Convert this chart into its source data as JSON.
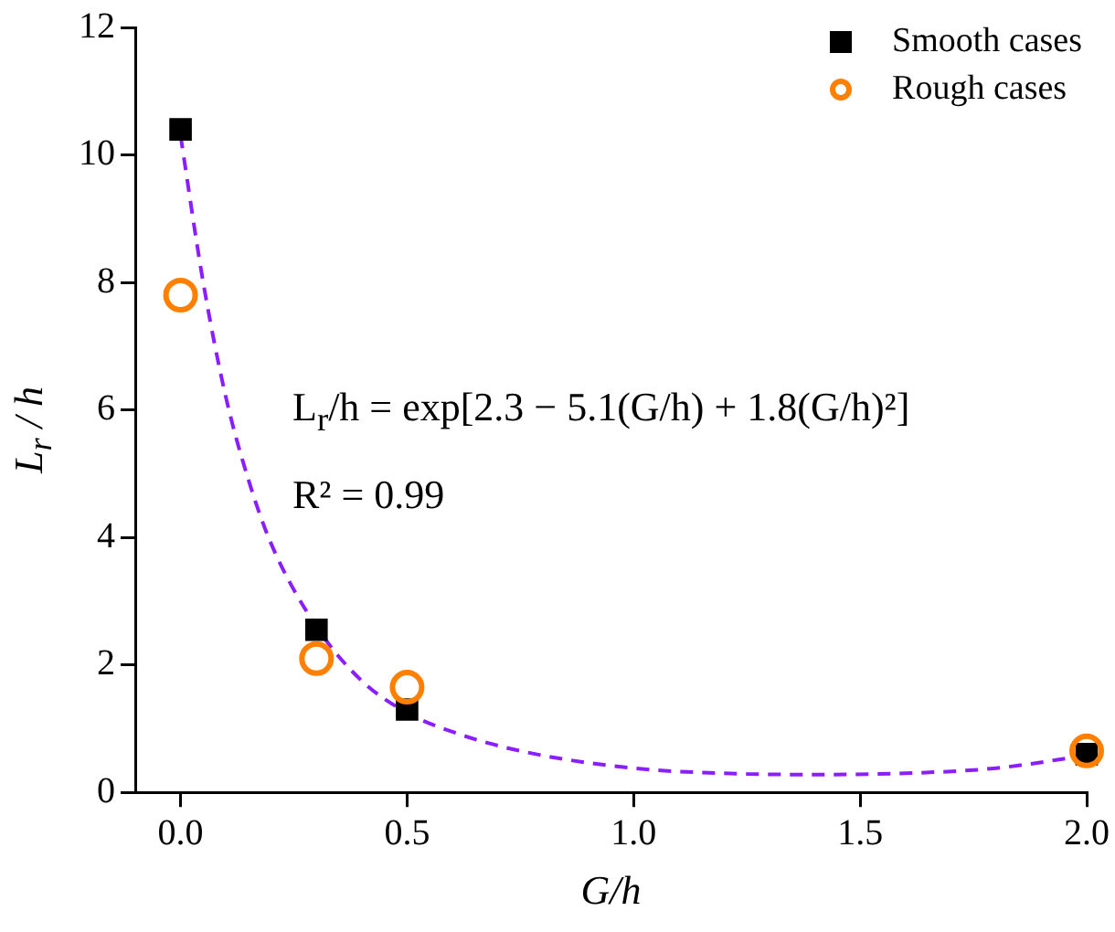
{
  "chart_data": {
    "type": "scatter",
    "xlabel": "G/h",
    "ylabel": "L$_{r}$ / h",
    "xlim": [
      -0.1,
      2.0
    ],
    "xticks": [
      {
        "value": 0,
        "label": "0.0"
      },
      {
        "value": 0.5,
        "label": "0.5"
      },
      {
        "value": 1,
        "label": "1.0"
      },
      {
        "value": 1.5,
        "label": "1.5"
      },
      {
        "value": 2,
        "label": "2.0"
      }
    ],
    "ylim": [
      0,
      12
    ],
    "yticks": [
      0,
      2,
      4,
      6,
      8,
      10,
      12
    ],
    "grid": false,
    "legend": "top right",
    "series": [
      {
        "name": "Smooth cases",
        "color": "#000000",
        "marker": "square",
        "x": [
          0,
          0.3,
          0.5,
          2.0
        ],
        "values": [
          10.4,
          2.55,
          1.3,
          0.6
        ]
      },
      {
        "name": "Rough cases",
        "color": "#ff8000",
        "marker": "circle",
        "x": [
          0,
          0.3,
          0.5,
          2.0
        ],
        "values": [
          7.8,
          2.1,
          1.65,
          0.65
        ]
      },
      {
        "type": "line",
        "color": "#8b1eff",
        "marker": "none",
        "line_style": "dashed",
        "x": [
          0,
          0.05,
          0.1,
          0.15,
          0.2,
          0.3,
          0.4,
          0.5,
          0.6,
          0.75,
          1.0,
          1.25,
          1.4,
          1.6,
          1.8,
          2.0
        ],
        "values": [
          10.3,
          8.0,
          6.2,
          4.9,
          3.9,
          2.6,
          1.75,
          1.25,
          0.95,
          0.65,
          0.38,
          0.29,
          0.28,
          0.3,
          0.38,
          0.58
        ]
      }
    ],
    "annotations": [
      "L$_{r}$/h = exp[2.3 − 5.1(G/h) + 1.8(G/h)²]",
      "R² = 0.99"
    ]
  }
}
